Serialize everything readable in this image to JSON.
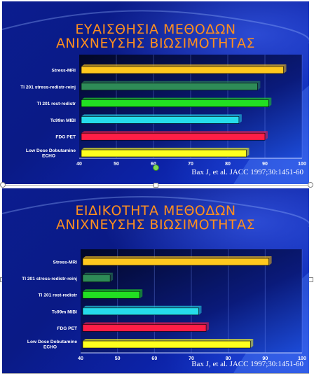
{
  "slides": [
    {
      "title_lines": [
        "ΕΥΑΙΣΘΗΣΙΑ ΜΕΘΟΔΩΝ",
        "ΑΝΙΧΝΕΥΣΗΣ ΒΙΩΣΙΜΟΤΗΤΑΣ"
      ],
      "citation": "Bax J, et al. JACC 1997;30:1451-60"
    },
    {
      "title_lines": [
        "ΕΙΔΙΚΟΤΗΤΑ ΜΕΘΟΔΩΝ",
        "ΑΝΙΧΝΕΥΣΗΣ ΒΙΩΣΙΜΟΤΗΤΑΣ"
      ],
      "citation": "Bax J, et al. JACC 1997;30:1451-60"
    }
  ],
  "colors": {
    "title": "#ff8f1e",
    "bars": [
      "#ffc81e",
      "#2e8b57",
      "#22e022",
      "#26dcea",
      "#ff1e46",
      "#ffff1e"
    ]
  },
  "chart_data": [
    {
      "type": "bar",
      "orientation": "horizontal",
      "categories": [
        "Stress-MRI",
        "Tl 201 stress-redistr-reinj",
        "Tl 201 rest-redistr",
        "Tc99m MIBI",
        "FDG PET",
        "Low Dose Dobutamine ECHO"
      ],
      "values": [
        95,
        88,
        91,
        83,
        90,
        85
      ],
      "xlim": [
        40,
        100
      ],
      "xticks": [
        40,
        50,
        60,
        70,
        80,
        90,
        100
      ]
    },
    {
      "type": "bar",
      "orientation": "horizontal",
      "categories": [
        "Stress-MRI",
        "Tl 201 stress-redistr-reinj",
        "Tl 201 rest-redistr",
        "Tc99m MIBI",
        "FDG PET",
        "Low Dose Dobutamine ECHO"
      ],
      "values": [
        91,
        48,
        56,
        72,
        74,
        86
      ],
      "xlim": [
        40,
        100
      ],
      "xticks": [
        40,
        50,
        60,
        70,
        80,
        90,
        100
      ]
    }
  ]
}
